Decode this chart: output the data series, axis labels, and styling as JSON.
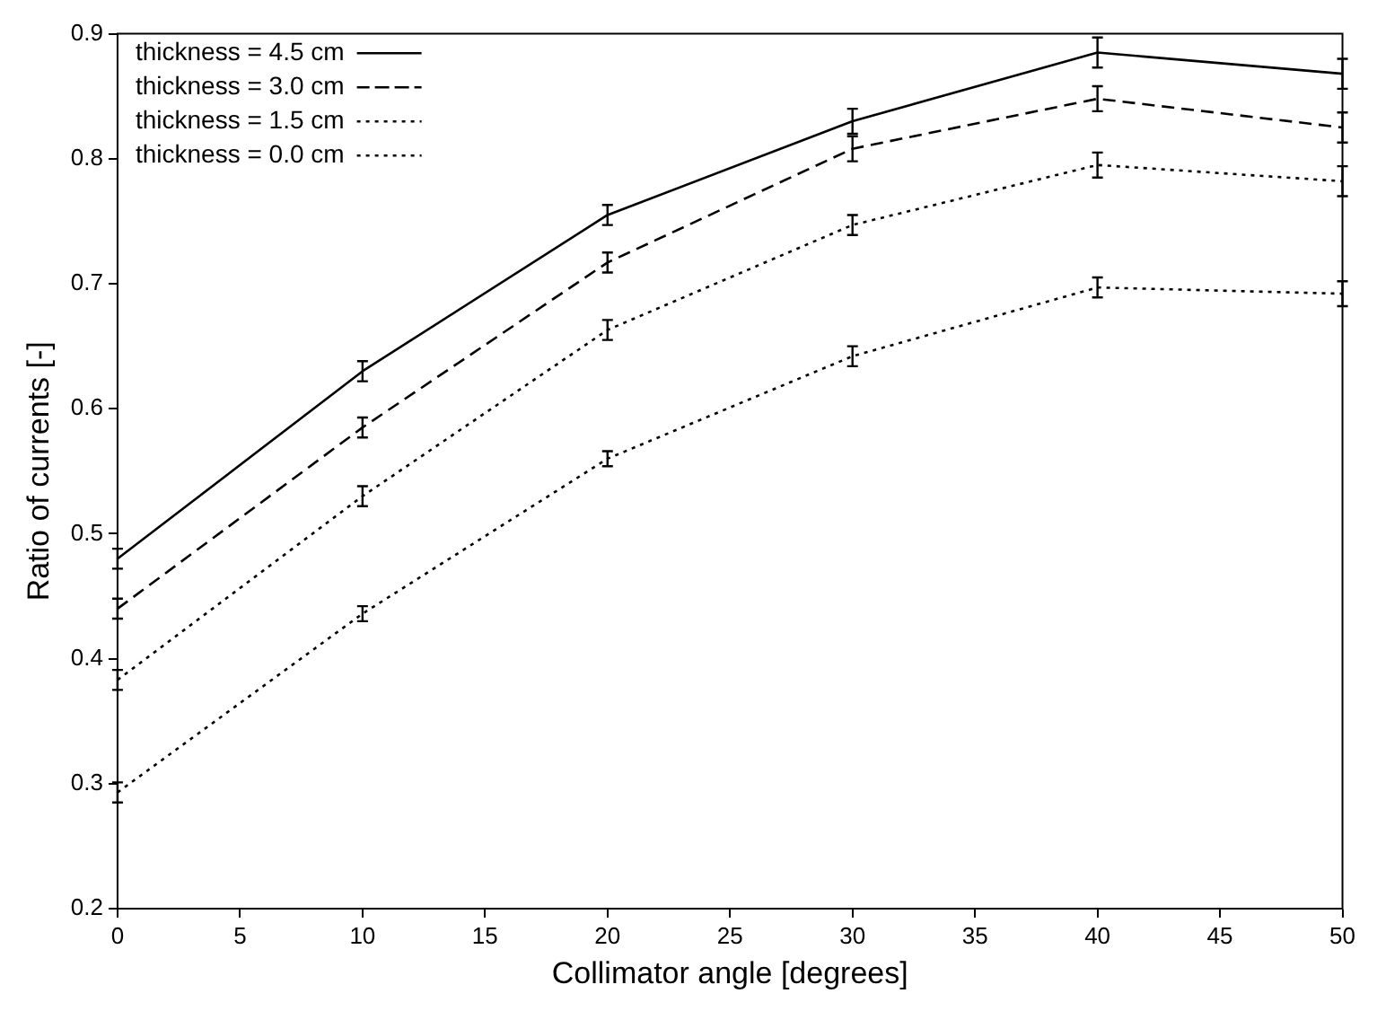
{
  "chart_data": {
    "type": "line",
    "xlabel": "Collimator angle [degrees]",
    "ylabel": "Ratio of currents [-]",
    "x": [
      0,
      10,
      20,
      30,
      40,
      50
    ],
    "xlim": [
      0,
      50
    ],
    "xticks": [
      0,
      5,
      10,
      15,
      20,
      25,
      30,
      35,
      40,
      45,
      50
    ],
    "ylim": [
      0.2,
      0.9
    ],
    "yticks": [
      0.2,
      0.3,
      0.4,
      0.5,
      0.6,
      0.7,
      0.8,
      0.9
    ],
    "grid": false,
    "legend": "top left",
    "marker": "none",
    "series": [
      {
        "name": "thickness = 4.5 cm",
        "color": "#000000",
        "line_style": "solid",
        "values": [
          0.48,
          0.63,
          0.755,
          0.83,
          0.885,
          0.868
        ],
        "errors": [
          0.008,
          0.008,
          0.008,
          0.01,
          0.012,
          0.012
        ]
      },
      {
        "name": "thickness = 3.0 cm",
        "color": "#000000",
        "line_style": "dashed",
        "values": [
          0.44,
          0.585,
          0.717,
          0.808,
          0.848,
          0.825
        ],
        "errors": [
          0.008,
          0.008,
          0.008,
          0.01,
          0.01,
          0.012
        ]
      },
      {
        "name": "thickness = 1.5 cm",
        "color": "#000000",
        "line_style": "dotted",
        "values": [
          0.383,
          0.53,
          0.663,
          0.747,
          0.795,
          0.782
        ],
        "errors": [
          0.008,
          0.008,
          0.008,
          0.008,
          0.01,
          0.012
        ]
      },
      {
        "name": "thickness = 0.0 cm",
        "color": "#000000",
        "line_style": "dotted",
        "values": [
          0.293,
          0.436,
          0.56,
          0.642,
          0.697,
          0.692
        ],
        "errors": [
          0.008,
          0.006,
          0.006,
          0.008,
          0.008,
          0.01
        ]
      }
    ]
  }
}
